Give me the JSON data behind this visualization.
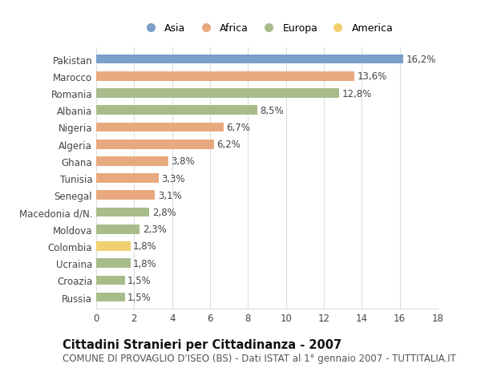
{
  "countries": [
    "Pakistan",
    "Marocco",
    "Romania",
    "Albania",
    "Nigeria",
    "Algeria",
    "Ghana",
    "Tunisia",
    "Senegal",
    "Macedonia d/N.",
    "Moldova",
    "Colombia",
    "Ucraina",
    "Croazia",
    "Russia"
  ],
  "values": [
    16.2,
    13.6,
    12.8,
    8.5,
    6.7,
    6.2,
    3.8,
    3.3,
    3.1,
    2.8,
    2.3,
    1.8,
    1.8,
    1.5,
    1.5
  ],
  "continents": [
    "Asia",
    "Africa",
    "Europa",
    "Europa",
    "Africa",
    "Africa",
    "Africa",
    "Africa",
    "Africa",
    "Europa",
    "Europa",
    "America",
    "Europa",
    "Europa",
    "Europa"
  ],
  "colors": {
    "Asia": "#7b9fc8",
    "Africa": "#e8a97e",
    "Europa": "#a8bc8a",
    "America": "#f0d070"
  },
  "xlim": [
    0,
    18
  ],
  "xticks": [
    0,
    2,
    4,
    6,
    8,
    10,
    12,
    14,
    16,
    18
  ],
  "title": "Cittadini Stranieri per Cittadinanza - 2007",
  "subtitle": "COMUNE DI PROVAGLIO D'ISEO (BS) - Dati ISTAT al 1° gennaio 2007 - TUTTITALIA.IT",
  "background_color": "#ffffff",
  "grid_color": "#dddddd",
  "bar_height": 0.55,
  "label_fontsize": 8.5,
  "value_fontsize": 8.5,
  "title_fontsize": 10.5,
  "subtitle_fontsize": 8.5,
  "legend_entries": [
    "Asia",
    "Africa",
    "Europa",
    "America"
  ]
}
